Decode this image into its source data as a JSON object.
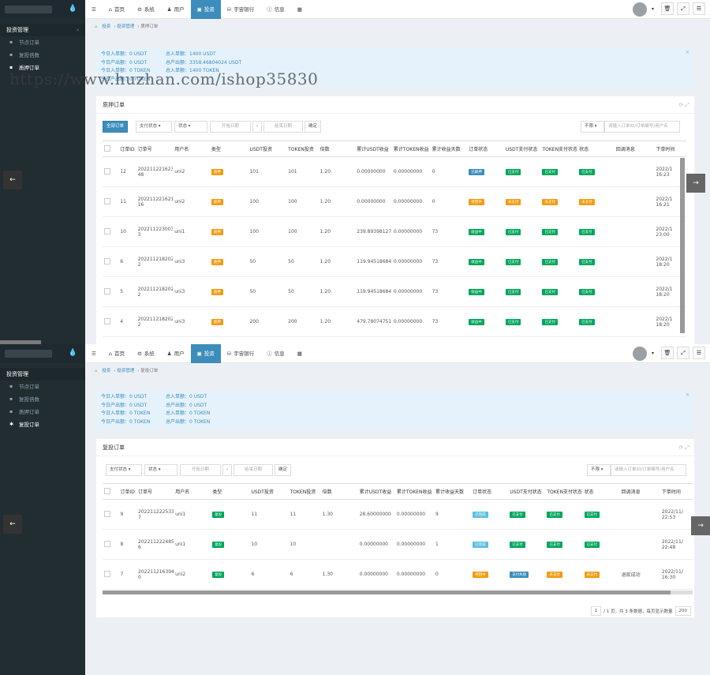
{
  "colors": {
    "blue": "#3c8dbc",
    "green": "#00a65a",
    "orange": "#f39c12",
    "lightblue": "#5bc0de",
    "sidebar": "#222d32"
  },
  "nav": {
    "items": [
      {
        "label": "首页",
        "icon": "home-icon"
      },
      {
        "label": "系统",
        "icon": "gear-icon"
      },
      {
        "label": "用户",
        "icon": "user-icon"
      },
      {
        "label": "投资",
        "icon": "briefcase-icon"
      },
      {
        "label": "宇宙银行",
        "icon": "bank-icon"
      },
      {
        "label": "信息",
        "icon": "info-icon"
      }
    ]
  },
  "sidebar": {
    "section": "投资管理",
    "items": [
      "节点订单",
      "复投倍数",
      "质押订单",
      "复投订单"
    ]
  },
  "watermark": "https://www.huzhan.com/ishop35830",
  "p1": {
    "breadcrumb": [
      "投资",
      "投资管理",
      "质押订单"
    ],
    "stats": [
      [
        "今日入单额：0 USDT",
        "总入单额：1400 USDT"
      ],
      [
        "今日产出额：0 USDT",
        "总产出额：3358.46804024 USDT"
      ],
      [
        "今日入单额：0 TOKEN",
        "总入单额：1400 TOKEN"
      ],
      [
        "今日产出额：0 TOKEN",
        ""
      ]
    ],
    "title": "质押订单",
    "toolbar": {
      "all": "全部订单",
      "pay": "支付状态",
      "status": "状态",
      "start": "开始日期",
      "end": "结束日期",
      "ok": "确定",
      "limit": "不限",
      "search_ph": "请输入订单ID/订单编号/用户名"
    },
    "headers": [
      "订单ID",
      "订单号",
      "用户名",
      "类型",
      "USDT投资",
      "TOKEN投资",
      "倍数",
      "累计USDT收益",
      "累计TOKEN收益",
      "累计收益天数",
      "订单状态",
      "USDT支付状态",
      "TOKEN支付状态",
      "状态",
      "回调消息",
      "下单时间"
    ],
    "rows": [
      {
        "id": "12",
        "no": "202211221623384521 48",
        "user": "uni2",
        "type": "质押",
        "usdt": "101",
        "token": "101",
        "mul": "1.20",
        "cu": "0.00000000",
        "ct": "0.00000000",
        "days": "0",
        "st": "已解押",
        "stc": "#3c8dbc",
        "up": "已支付",
        "upc": "#00a65a",
        "tp": "已支付",
        "tpc": "#00a65a",
        "s": "已支付",
        "sc": "#00a65a",
        "time": "2022/1 16:23"
      },
      {
        "id": "11",
        "no": "202211221621371849 16",
        "user": "uni2",
        "type": "质押",
        "usdt": "100",
        "token": "100",
        "mul": "1.20",
        "cu": "0.00000000",
        "ct": "0.00000000",
        "days": "0",
        "st": "待回中",
        "stc": "#f39c12",
        "up": "未支付",
        "upc": "#f39c12",
        "tp": "未支付",
        "tpc": "#f39c12",
        "s": "未支付",
        "sc": "#f39c12",
        "time": "2022/1 16:21"
      },
      {
        "id": "10",
        "no": "202211223003526843 3",
        "user": "uni1",
        "type": "质押",
        "usdt": "100",
        "token": "100",
        "mul": "1.20",
        "cu": "239.89398127",
        "ct": "0.00000000",
        "days": "73",
        "st": "收益中",
        "stc": "#00a65a",
        "up": "已支付",
        "upc": "#00a65a",
        "tp": "已支付",
        "tpc": "#00a65a",
        "s": "已支付",
        "sc": "#00a65a",
        "time": "2022/1 23:00"
      },
      {
        "id": "6",
        "no": "202211218202279885 2",
        "user": "uni3",
        "type": "质押",
        "usdt": "50",
        "token": "50",
        "mul": "1.20",
        "cu": "119.94518684",
        "ct": "0.00000000",
        "days": "73",
        "st": "收益中",
        "stc": "#00a65a",
        "up": "已支付",
        "upc": "#00a65a",
        "tp": "已支付",
        "tpc": "#00a65a",
        "s": "已支付",
        "sc": "#00a65a",
        "time": "2022/1 18:20"
      },
      {
        "id": "5",
        "no": "202211218202279885 2",
        "user": "uni3",
        "type": "质押",
        "usdt": "50",
        "token": "50",
        "mul": "1.20",
        "cu": "119.94518684",
        "ct": "0.00000000",
        "days": "73",
        "st": "收益中",
        "stc": "#00a65a",
        "up": "已支付",
        "upc": "#00a65a",
        "tp": "已支付",
        "tpc": "#00a65a",
        "s": "已支付",
        "sc": "#00a65a",
        "time": "2022/1 18:20"
      },
      {
        "id": "4",
        "no": "202211218202279885 2",
        "user": "uni3",
        "type": "质押",
        "usdt": "200",
        "token": "200",
        "mul": "1.20",
        "cu": "479.78074751",
        "ct": "0.00000000",
        "days": "73",
        "st": "收益中",
        "stc": "#00a65a",
        "up": "已支付",
        "upc": "#00a65a",
        "tp": "已支付",
        "tpc": "#00a65a",
        "s": "已支付",
        "sc": "#00a65a",
        "time": "2022/1 18:20"
      }
    ]
  },
  "p2": {
    "breadcrumb": [
      "投资",
      "投资管理",
      "复投订单"
    ],
    "stats": [
      [
        "今日入单额：0 USDT",
        "总入单额：0 USDT"
      ],
      [
        "今日产出额：0 USDT",
        "总产出额：0 USDT"
      ],
      [
        "今日入单额：0 TOKEN",
        "总入单额：0 TOKEN"
      ],
      [
        "今日产出额：0 TOKEN",
        "总产出额：0 TOKEN"
      ]
    ],
    "title": "复投订单",
    "toolbar": {
      "pay": "支付状态",
      "status": "状态",
      "start": "开始日期",
      "end": "结束日期",
      "ok": "确定",
      "limit": "不限",
      "search_ph": "请输入订单ID/订单编号/用户名"
    },
    "headers": [
      "订单ID",
      "订单号",
      "用户名",
      "类型",
      "USDT投资",
      "TOKEN投资",
      "倍数",
      "累计USDT收益",
      "累计TOKEN收益",
      "累计收益天数",
      "订单状态",
      "USDT支付状态",
      "TOKEN支付状态",
      "状态",
      "回调消息",
      "下单时间"
    ],
    "rows": [
      {
        "id": "9",
        "no": "202211222533988823 7",
        "user": "uni1",
        "type": "复投",
        "usdt": "11",
        "token": "11",
        "mul": "1.30",
        "cu": "28.60000000",
        "ct": "0.00000000",
        "days": "9",
        "st": "已完成",
        "stc": "#5bc0de",
        "up": "已支付",
        "upc": "#00a65a",
        "tp": "已支付",
        "tpc": "#00a65a",
        "s": "已支付",
        "sc": "#00a65a",
        "msg": "",
        "time": "2022/11/ 22:53"
      },
      {
        "id": "8",
        "no": "202211222485149638 6",
        "user": "uni1",
        "type": "复投",
        "usdt": "10",
        "token": "10",
        "mul": "",
        "cu": "0.00000000",
        "ct": "0.00000000",
        "days": "1",
        "st": "已完成",
        "stc": "#5bc0de",
        "up": "已支付",
        "upc": "#00a65a",
        "tp": "已支付",
        "tpc": "#00a65a",
        "s": "已支付",
        "sc": "#00a65a",
        "msg": "",
        "time": "2022/11/ 22:48"
      },
      {
        "id": "7",
        "no": "202211216394620440 0",
        "user": "uni2",
        "type": "复投",
        "usdt": "6",
        "token": "6",
        "mul": "1.30",
        "cu": "0.00000000",
        "ct": "0.00000000",
        "days": "0",
        "st": "待回中",
        "stc": "#f39c12",
        "up": "支付失败",
        "upc": "#3c8dbc",
        "tp": "未支付",
        "tpc": "#f39c12",
        "s": "未支付",
        "sc": "#f39c12",
        "msg": "退款成功",
        "time": "2022/11/ 16:30"
      }
    ],
    "pager": {
      "page": "1",
      "info": "/ 1 页，共 3 条数据，每页显示数量",
      "size": "200"
    }
  }
}
